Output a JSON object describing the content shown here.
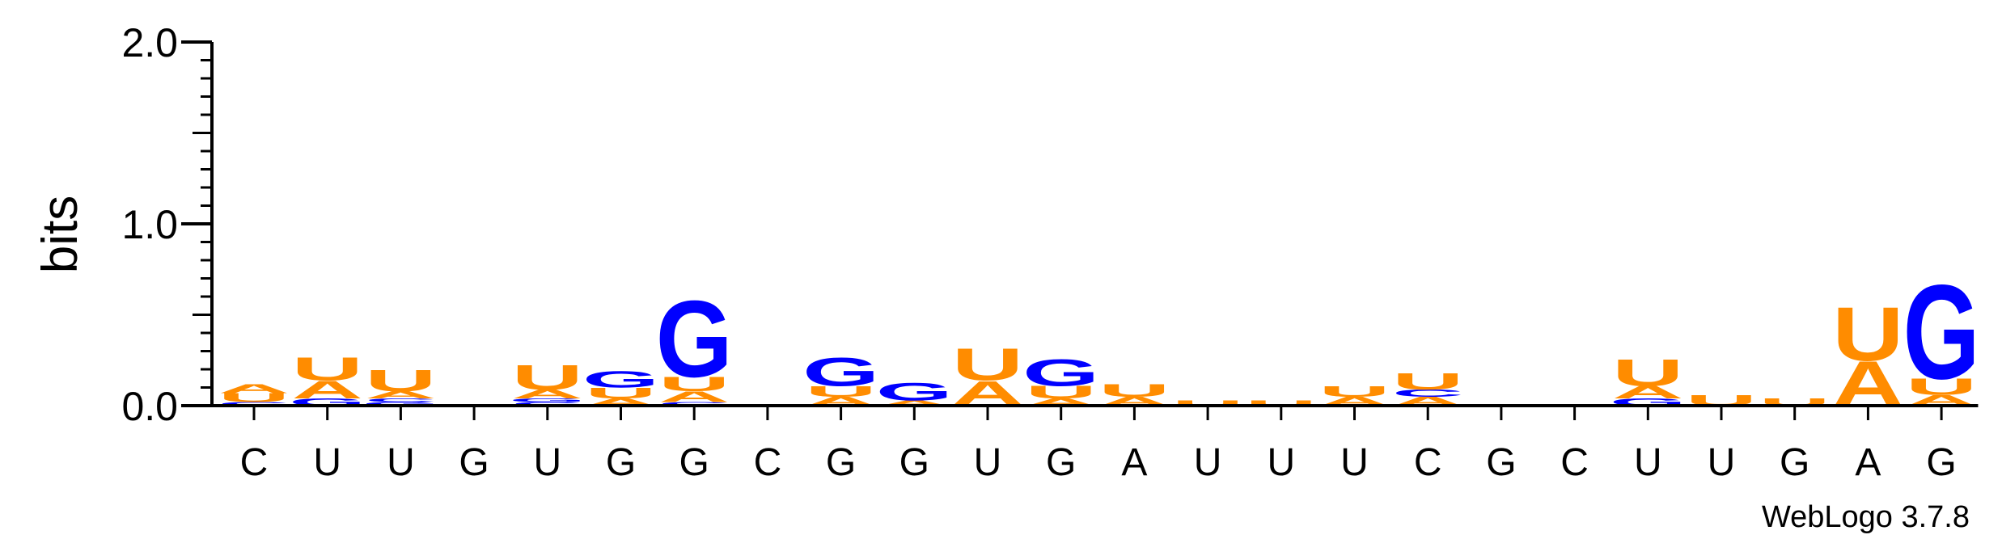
{
  "chart_data": {
    "type": "sequence-logo",
    "ylabel": "bits",
    "ylim": [
      0,
      2
    ],
    "yticks": [
      {
        "value": 0,
        "label": "0.0"
      },
      {
        "value": 1,
        "label": "1.0"
      },
      {
        "value": 2,
        "label": "2.0"
      }
    ],
    "credit": "WebLogo 3.7.8",
    "colors": {
      "A": "#ff8c00",
      "U": "#ff8c00",
      "G": "#0000ff",
      "C": "#0000ff"
    },
    "positions": [
      {
        "label": "C",
        "stack": [
          {
            "letter": "C",
            "bits": 0.02
          },
          {
            "letter": "U",
            "bits": 0.05
          },
          {
            "letter": "A",
            "bits": 0.05
          }
        ]
      },
      {
        "label": "U",
        "stack": [
          {
            "letter": "G",
            "bits": 0.04
          },
          {
            "letter": "A",
            "bits": 0.1
          },
          {
            "letter": "U",
            "bits": 0.13
          }
        ]
      },
      {
        "label": "U",
        "stack": [
          {
            "letter": "G",
            "bits": 0.02
          },
          {
            "letter": "C",
            "bits": 0.02
          },
          {
            "letter": "A",
            "bits": 0.04
          },
          {
            "letter": "U",
            "bits": 0.12
          }
        ]
      },
      {
        "label": "G",
        "stack": [
          {
            "letter": "G",
            "bits": 0.01
          }
        ]
      },
      {
        "label": "U",
        "stack": [
          {
            "letter": "C",
            "bits": 0.02
          },
          {
            "letter": "G",
            "bits": 0.02
          },
          {
            "letter": "A",
            "bits": 0.05
          },
          {
            "letter": "U",
            "bits": 0.14
          }
        ]
      },
      {
        "label": "G",
        "stack": [
          {
            "letter": "A",
            "bits": 0.04
          },
          {
            "letter": "U",
            "bits": 0.06
          },
          {
            "letter": "G",
            "bits": 0.09
          }
        ]
      },
      {
        "label": "G",
        "stack": [
          {
            "letter": "C",
            "bits": 0.02
          },
          {
            "letter": "A",
            "bits": 0.06
          },
          {
            "letter": "U",
            "bits": 0.08
          },
          {
            "letter": "G",
            "bits": 0.43
          }
        ]
      },
      {
        "label": "C",
        "stack": []
      },
      {
        "label": "G",
        "stack": [
          {
            "letter": "A",
            "bits": 0.05
          },
          {
            "letter": "U",
            "bits": 0.06
          },
          {
            "letter": "G",
            "bits": 0.16
          }
        ]
      },
      {
        "label": "G",
        "stack": [
          {
            "letter": "A",
            "bits": 0.03
          },
          {
            "letter": "G",
            "bits": 0.1
          }
        ]
      },
      {
        "label": "U",
        "stack": [
          {
            "letter": "C",
            "bits": 0.01
          },
          {
            "letter": "A",
            "bits": 0.13
          },
          {
            "letter": "U",
            "bits": 0.18
          }
        ]
      },
      {
        "label": "G",
        "stack": [
          {
            "letter": "A",
            "bits": 0.04
          },
          {
            "letter": "U",
            "bits": 0.07
          },
          {
            "letter": "G",
            "bits": 0.15
          }
        ]
      },
      {
        "label": "A",
        "stack": [
          {
            "letter": "A",
            "bits": 0.05
          },
          {
            "letter": "U",
            "bits": 0.07
          }
        ]
      },
      {
        "label": "U",
        "stack": [
          {
            "letter": "U",
            "bits": 0.03
          }
        ]
      },
      {
        "label": "U",
        "stack": [
          {
            "letter": "U",
            "bits": 0.03
          }
        ]
      },
      {
        "label": "U",
        "stack": [
          {
            "letter": "A",
            "bits": 0.05
          },
          {
            "letter": "U",
            "bits": 0.06
          }
        ]
      },
      {
        "label": "C",
        "stack": [
          {
            "letter": "A",
            "bits": 0.05
          },
          {
            "letter": "C",
            "bits": 0.04
          },
          {
            "letter": "U",
            "bits": 0.09
          }
        ]
      },
      {
        "label": "G",
        "stack": []
      },
      {
        "label": "C",
        "stack": []
      },
      {
        "label": "U",
        "stack": [
          {
            "letter": "G",
            "bits": 0.04
          },
          {
            "letter": "A",
            "bits": 0.07
          },
          {
            "letter": "U",
            "bits": 0.15
          }
        ]
      },
      {
        "label": "U",
        "stack": [
          {
            "letter": "U",
            "bits": 0.06
          }
        ]
      },
      {
        "label": "G",
        "stack": [
          {
            "letter": "U",
            "bits": 0.04
          }
        ]
      },
      {
        "label": "A",
        "stack": [
          {
            "letter": "A",
            "bits": 0.25
          },
          {
            "letter": "U",
            "bits": 0.3
          }
        ]
      },
      {
        "label": "G",
        "stack": [
          {
            "letter": "A",
            "bits": 0.06
          },
          {
            "letter": "U",
            "bits": 0.09
          },
          {
            "letter": "G",
            "bits": 0.53
          }
        ]
      }
    ]
  }
}
